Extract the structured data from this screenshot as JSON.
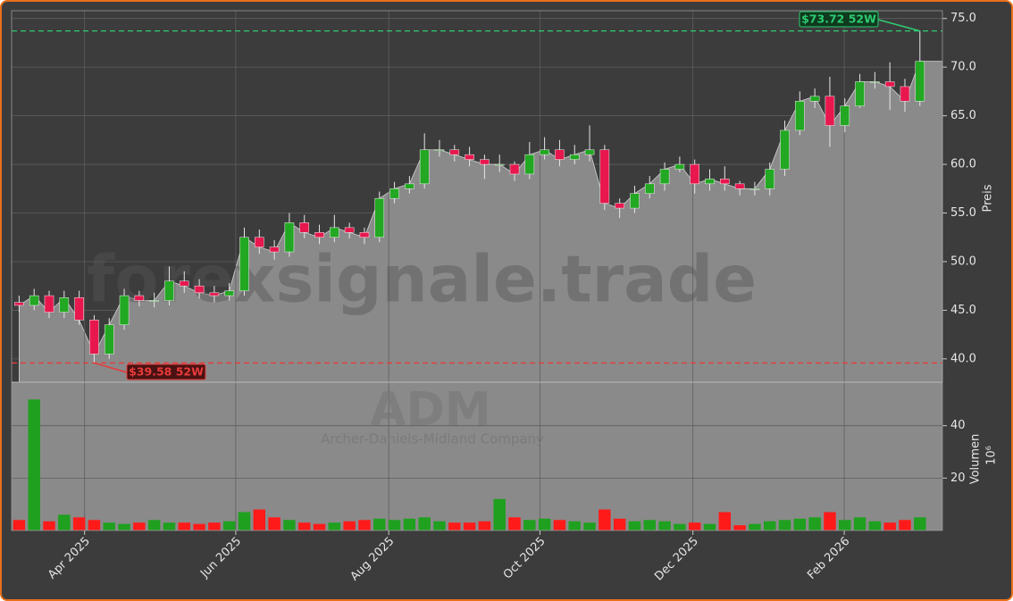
{
  "chart_data": [
    {
      "type": "candlestick",
      "watermark": "forexsignale.trade",
      "ylabel": "Preis",
      "xlim": [
        -0.5,
        61.5
      ],
      "ylim": [
        37.6,
        75.8
      ],
      "yticks": [
        {
          "value": 40,
          "label": "40.0"
        },
        {
          "value": 45,
          "label": "45.0"
        },
        {
          "value": 50,
          "label": "50.0"
        },
        {
          "value": 55,
          "label": "55.0"
        },
        {
          "value": 60,
          "label": "60.0"
        },
        {
          "value": 65,
          "label": "65.0"
        },
        {
          "value": 70,
          "label": "70.0"
        },
        {
          "value": 75,
          "label": "75.0"
        }
      ],
      "grid": true,
      "up_color": "#22a822",
      "down_color": "#e8174e",
      "area_color": "#8a8a8a",
      "open": [
        45.8,
        45.5,
        46.5,
        44.8,
        46.3,
        44,
        40.5,
        43.5,
        46.5,
        46,
        46,
        48,
        47.5,
        46.8,
        46.5,
        47,
        52.5,
        51.5,
        51,
        54,
        53,
        52.5,
        53.5,
        53,
        52.5,
        56.5,
        57.5,
        58,
        61.5,
        61.5,
        61,
        60.5,
        60,
        60,
        59,
        61,
        61.5,
        60.5,
        61,
        61.5,
        56,
        55.5,
        57,
        58,
        59.5,
        60,
        58,
        58.5,
        58,
        57.5,
        57.5,
        59.5,
        63.5,
        66.5,
        67,
        64,
        66,
        68.5,
        68.5,
        68,
        66.5
      ],
      "high": [
        46.5,
        47.2,
        47,
        47,
        47,
        44.5,
        44.2,
        47.2,
        47,
        46.8,
        49.5,
        49,
        48.2,
        47.5,
        47.8,
        53.5,
        53.3,
        52.2,
        55,
        54.8,
        53.8,
        54.8,
        54,
        53.5,
        57.2,
        58.2,
        58.8,
        63.2,
        62.5,
        62,
        61.8,
        61,
        61,
        60.3,
        62.3,
        62.8,
        62.5,
        62,
        64,
        62,
        56.5,
        57.8,
        58.8,
        60.2,
        60.8,
        60.5,
        59.5,
        59.8,
        58.3,
        58.2,
        60.2,
        64.5,
        67.5,
        67.8,
        69,
        66.8,
        69.3,
        69.5,
        70.5,
        68.8,
        73.72
      ],
      "low": [
        44.8,
        45,
        44.2,
        44.2,
        43.5,
        39.58,
        40,
        43,
        45.4,
        45.3,
        45.5,
        46.8,
        46.2,
        45.8,
        46,
        46.5,
        50.8,
        50.2,
        50.5,
        52.4,
        51.8,
        52,
        52.4,
        51.8,
        52,
        56,
        57,
        57.5,
        60.8,
        60.3,
        59.8,
        58.5,
        59.2,
        58.3,
        58.5,
        60.5,
        59.8,
        60,
        60.3,
        55.3,
        54.5,
        55,
        56.5,
        57.3,
        59.2,
        57,
        57.3,
        57.3,
        56.8,
        56.8,
        56.8,
        58.8,
        63,
        65.8,
        61.8,
        63.3,
        65.8,
        67.8,
        65.6,
        65.4,
        66
      ],
      "close": [
        45.5,
        46.5,
        44.8,
        46.3,
        44,
        40.5,
        43.5,
        46.5,
        46,
        46,
        48,
        47.5,
        46.8,
        46.5,
        47,
        52.5,
        51.5,
        51,
        54,
        53,
        52.5,
        53.5,
        53,
        52.5,
        56.5,
        57.5,
        58,
        61.5,
        61.5,
        61,
        60.5,
        60,
        60,
        59,
        61,
        61.5,
        60.5,
        61,
        61.5,
        56,
        55.5,
        57,
        58,
        59.5,
        60,
        58,
        58.5,
        58,
        57.5,
        57.5,
        59.5,
        63.5,
        66.5,
        67,
        64,
        66,
        68.5,
        68.5,
        68,
        66.5,
        70.6
      ],
      "hlines": [
        {
          "value": 73.72,
          "label": "$73.72 52W",
          "color": "#2ecc71"
        },
        {
          "value": 39.58,
          "label": "$39.58 52W",
          "color": "#e83a3a"
        }
      ]
    },
    {
      "type": "bar",
      "title": "ADM",
      "subtitle": "Archer-Daniels-Midland Company",
      "ylabel": "Volumen",
      "unit_label": "10⁶",
      "xlim": [
        -0.5,
        61.5
      ],
      "ylim": [
        0,
        56.6
      ],
      "yticks": [
        20,
        40
      ],
      "grid": true,
      "xticks": [
        {
          "value": 4.36,
          "label": "Apr 2025"
        },
        {
          "value": 14.43,
          "label": "Jun 2025"
        },
        {
          "value": 24.62,
          "label": "Aug 2025"
        },
        {
          "value": 34.69,
          "label": "Oct 2025"
        },
        {
          "value": 44.88,
          "label": "Dec 2025"
        },
        {
          "value": 54.96,
          "label": "Feb 2026"
        }
      ],
      "up_color": "#1fa01f",
      "down_color": "#ff1a1a",
      "values": [
        4,
        50,
        3.5,
        6,
        5,
        4,
        3,
        2.5,
        3,
        4,
        3,
        3,
        2.5,
        3,
        3.5,
        7,
        8,
        5,
        4,
        3,
        2.5,
        3,
        3.5,
        4,
        4.5,
        4,
        4.5,
        5,
        3.5,
        3,
        3,
        3.5,
        12,
        5,
        4,
        4.5,
        4,
        3.5,
        3,
        8,
        4.5,
        3.5,
        4,
        3.5,
        2.5,
        3,
        2.5,
        7,
        2,
        2.5,
        3.5,
        4,
        4.5,
        5,
        7,
        4,
        5,
        3.5,
        3,
        4,
        5
      ]
    }
  ]
}
